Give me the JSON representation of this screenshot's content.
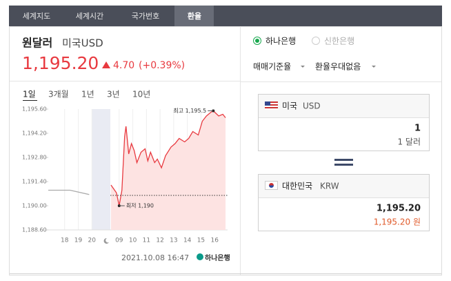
{
  "tabs": [
    "세계지도",
    "세계시간",
    "국가번호",
    "환율"
  ],
  "header": {
    "title": "원달러",
    "subtitle": "미국USD",
    "price": "1,195.20",
    "change": "4.70",
    "change_pct": "(+0.39%)"
  },
  "periods": [
    "1일",
    "3개월",
    "1년",
    "3년",
    "10년"
  ],
  "chart_data": {
    "type": "line",
    "xlim": [
      -0.2,
      12.95
    ],
    "ylim": [
      1188.6,
      1195.6
    ],
    "xticks": [
      {
        "value": 1,
        "label": "18"
      },
      {
        "value": 2,
        "label": "19"
      },
      {
        "value": 3,
        "label": "20"
      },
      {
        "value": 5,
        "label": "09"
      },
      {
        "value": 6,
        "label": "10"
      },
      {
        "value": 7,
        "label": "11"
      },
      {
        "value": 8,
        "label": "12"
      },
      {
        "value": 9,
        "label": "13"
      },
      {
        "value": 10,
        "label": "14"
      },
      {
        "value": 11,
        "label": "15"
      },
      {
        "value": 12,
        "label": "16"
      }
    ],
    "yticks": [
      {
        "value": 1195.6,
        "label": "1,195.60"
      },
      {
        "value": 1194.2,
        "label": "1,194.20"
      },
      {
        "value": 1192.8,
        "label": "1,192.80"
      },
      {
        "value": 1191.4,
        "label": "1,191.40"
      },
      {
        "value": 1190.0,
        "label": "1,190.00"
      },
      {
        "value": 1188.6,
        "label": "1,188.60"
      }
    ],
    "baseline": 1190.6,
    "series": [
      {
        "color": "#aaaaaa",
        "x": [
          -0.2,
          1.4,
          2.8
        ],
        "values": [
          1190.9,
          1190.9,
          1190.65
        ]
      },
      {
        "color": "#e8393f",
        "fill": "#fde3e2",
        "x": [
          4.4,
          4.8,
          5.0,
          5.2,
          5.4,
          5.5,
          5.7,
          5.9,
          6.1,
          6.3,
          6.6,
          6.9,
          7.1,
          7.3,
          7.6,
          7.8,
          8.1,
          8.4,
          8.8,
          9.1,
          9.4,
          9.8,
          10.1,
          10.4,
          10.8,
          11.1,
          11.4,
          11.7,
          11.9,
          12.3,
          12.6,
          12.8
        ],
        "values": [
          1191.2,
          1190.75,
          1190.0,
          1190.9,
          1194.0,
          1194.6,
          1193.0,
          1193.6,
          1193.2,
          1192.5,
          1193.1,
          1193.3,
          1192.6,
          1193.1,
          1192.5,
          1192.7,
          1192.2,
          1192.9,
          1193.4,
          1193.6,
          1193.9,
          1193.7,
          1193.9,
          1194.3,
          1194.1,
          1194.9,
          1195.2,
          1195.4,
          1195.5,
          1195.2,
          1195.3,
          1195.1
        ]
      }
    ],
    "annotations": [
      {
        "text": "최고 1,195.5",
        "x": 11.9,
        "y": 1195.5
      },
      {
        "text": "최저 1,190",
        "x": 5.0,
        "y": 1190.0
      }
    ],
    "timestamp": "2021.10.08 16:47",
    "logo": "하나은행"
  },
  "banks": [
    "하나은행",
    "신한은행"
  ],
  "options": [
    "매매기준율",
    "환율우대없음"
  ],
  "from": {
    "country": "미국",
    "code": "USD",
    "amount": "1",
    "unit_amount": "1 달러"
  },
  "to": {
    "country": "대한민국",
    "code": "KRW",
    "amount": "1,195.20",
    "unit_amount": "1,195.20 원"
  }
}
